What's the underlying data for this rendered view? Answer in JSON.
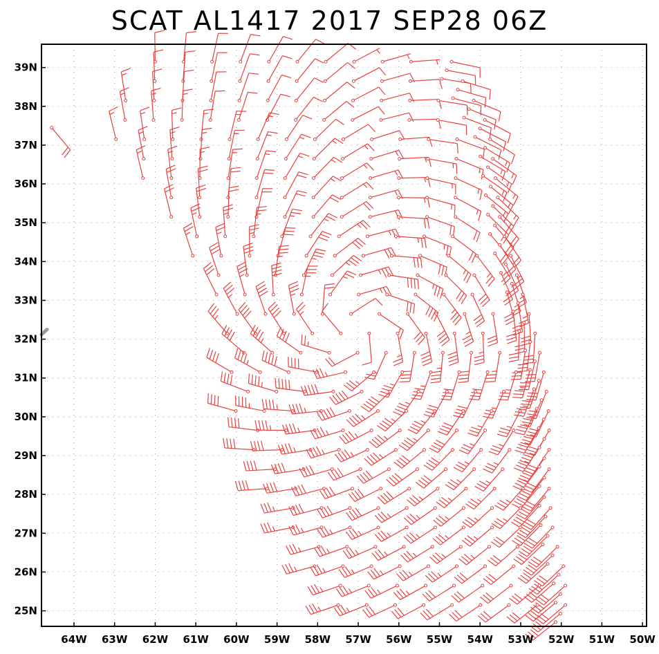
{
  "title": "SCAT AL1417 2017 SEP28 06Z",
  "colors": {
    "barb": "#e8403e",
    "grid": "#9a9a9a",
    "frame": "#000000",
    "land_edge": "#9a9a9a"
  },
  "chart_data": {
    "type": "wind-barb-map",
    "title": "SCAT AL1417 2017 SEP28 06Z",
    "xlabel": "",
    "ylabel": "",
    "lon_range": [
      -64.8,
      -49.9
    ],
    "lat_range": [
      24.6,
      39.6
    ],
    "x_ticks": [
      {
        "lon": -64,
        "label": "64W"
      },
      {
        "lon": -63,
        "label": "63W"
      },
      {
        "lon": -62,
        "label": "62W"
      },
      {
        "lon": -61,
        "label": "61W"
      },
      {
        "lon": -60,
        "label": "60W"
      },
      {
        "lon": -59,
        "label": "59W"
      },
      {
        "lon": -58,
        "label": "58W"
      },
      {
        "lon": -57,
        "label": "57W"
      },
      {
        "lon": -56,
        "label": "56W"
      },
      {
        "lon": -55,
        "label": "55W"
      },
      {
        "lon": -54,
        "label": "54W"
      },
      {
        "lon": -53,
        "label": "53W"
      },
      {
        "lon": -52,
        "label": "52W"
      },
      {
        "lon": -51,
        "label": "51W"
      },
      {
        "lon": -50,
        "label": "50W"
      }
    ],
    "y_ticks": [
      {
        "lat": 39,
        "label": "39N"
      },
      {
        "lat": 38,
        "label": "38N"
      },
      {
        "lat": 37,
        "label": "37N"
      },
      {
        "lat": 36,
        "label": "36N"
      },
      {
        "lat": 35,
        "label": "35N"
      },
      {
        "lat": 34,
        "label": "34N"
      },
      {
        "lat": 33,
        "label": "33N"
      },
      {
        "lat": 32,
        "label": "32N"
      },
      {
        "lat": 31,
        "label": "31N"
      },
      {
        "lat": 30,
        "label": "30N"
      },
      {
        "lat": 29,
        "label": "29N"
      },
      {
        "lat": 28,
        "label": "28N"
      },
      {
        "lat": 27,
        "label": "27N"
      },
      {
        "lat": 26,
        "label": "26N"
      },
      {
        "lat": 25,
        "label": "25N"
      }
    ],
    "grid": true,
    "storm_center": {
      "lon": -57.1,
      "lat": 32.2
    },
    "swath": {
      "rows": [
        {
          "lat": 39.15,
          "west": -62.0,
          "east": -54.7
        },
        {
          "lat": 37.5,
          "west": -63.2,
          "east": -53.8
        },
        {
          "lat": 36.0,
          "west": -62.2,
          "east": -53.6
        },
        {
          "lat": 35.0,
          "west": -61.5,
          "east": -53.5
        },
        {
          "lat": 34.0,
          "west": -61.0,
          "east": -53.2
        },
        {
          "lat": 33.0,
          "west": -60.4,
          "east": -52.9
        },
        {
          "lat": 32.0,
          "west": -60.2,
          "east": -52.6
        },
        {
          "lat": 31.0,
          "west": -60.1,
          "east": -52.4
        },
        {
          "lat": 30.0,
          "west": -60.0,
          "east": -52.3
        },
        {
          "lat": 29.0,
          "west": -59.5,
          "east": -52.3
        },
        {
          "lat": 28.0,
          "west": -59.2,
          "east": -52.3
        },
        {
          "lat": 27.0,
          "west": -58.5,
          "east": -52.2
        },
        {
          "lat": 26.0,
          "west": -58.0,
          "east": -51.9
        },
        {
          "lat": 25.0,
          "west": -57.4,
          "east": -51.9
        }
      ],
      "spacing_deg": 0.7,
      "edge_spacing_deg": 0.22
    },
    "ambient_wind": {
      "u_kt": 12,
      "v_kt": 4
    },
    "vortex": {
      "vmax_kt": 45,
      "rmax_deg": 1.6,
      "inflow_deg": 22
    },
    "isolated_barbs": [
      {
        "lon": -64.55,
        "lat": 37.45,
        "speed_kt": 20,
        "dir_from_deg": 140
      },
      {
        "lon": -64.75,
        "lat": 37.0,
        "speed_kt": 25,
        "dir_from_deg": 150
      }
    ]
  }
}
